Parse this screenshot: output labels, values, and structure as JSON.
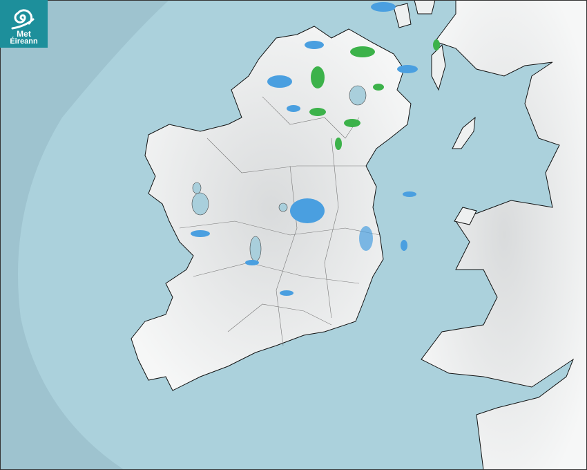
{
  "logo": {
    "line1": "Met",
    "line2": "Éireann",
    "icon": "spiral-swirl-icon"
  },
  "colors": {
    "outside_radar": "#9ec3cf",
    "sea": "#abd1dc",
    "land": "#eef0f0",
    "rain_light": "#4a9fe0",
    "rain_moderate": "#3cb24a",
    "logo_bg": "#1d8f9b"
  }
}
